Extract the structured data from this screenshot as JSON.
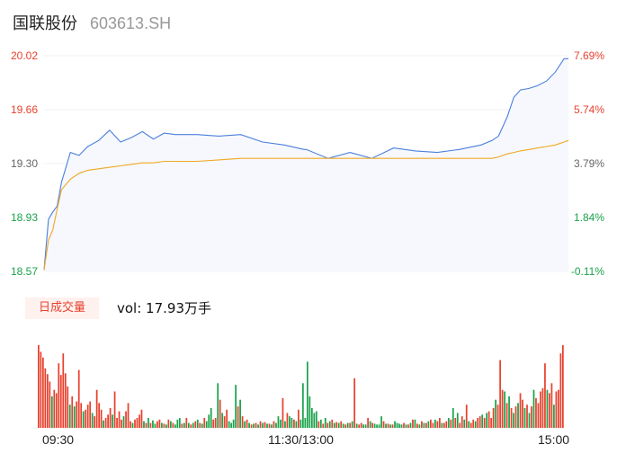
{
  "stock": {
    "name": "国联股份",
    "code": "603613.SH"
  },
  "colors": {
    "up": "#e8412d",
    "down": "#1aa34a",
    "price_line": "#4a7fdc",
    "avg_line": "#f0a820",
    "neutral": "#666666"
  },
  "volume": {
    "tab_label": "日成交量",
    "summary": "vol: 17.93万手"
  },
  "chart_data": [
    {
      "type": "line",
      "title": "",
      "y_left_ticks": [
        "20.02",
        "19.66",
        "19.30",
        "18.93",
        "18.57"
      ],
      "y_right_ticks": [
        "7.69%",
        "5.74%",
        "3.79%",
        "1.84%",
        "-0.11%"
      ],
      "ylim": [
        18.57,
        20.02
      ],
      "x_tick_labels": [
        "09:30",
        "11:30/13:00",
        "15:00"
      ],
      "x": [
        0,
        2,
        4,
        6,
        8,
        12,
        16,
        20,
        25,
        30,
        35,
        40,
        45,
        50,
        55,
        60,
        70,
        80,
        90,
        100,
        110,
        119,
        120,
        130,
        140,
        150,
        160,
        170,
        180,
        190,
        200,
        205,
        208,
        212,
        215,
        218,
        222,
        226,
        230,
        234,
        238,
        240
      ],
      "series": [
        {
          "values": [
            18.58,
            18.92,
            18.97,
            19.01,
            19.17,
            19.37,
            19.35,
            19.41,
            19.45,
            19.52,
            19.44,
            19.47,
            19.51,
            19.46,
            19.5,
            19.49,
            19.49,
            19.48,
            19.49,
            19.44,
            19.42,
            19.39,
            19.39,
            19.33,
            19.37,
            19.33,
            19.4,
            19.38,
            19.37,
            19.39,
            19.42,
            19.45,
            19.48,
            19.61,
            19.74,
            19.79,
            19.8,
            19.82,
            19.85,
            19.91,
            20.0,
            20.0
          ]
        },
        {
          "values": [
            18.58,
            18.78,
            18.85,
            18.99,
            19.12,
            19.19,
            19.23,
            19.25,
            19.26,
            19.27,
            19.28,
            19.29,
            19.3,
            19.3,
            19.31,
            19.31,
            19.31,
            19.32,
            19.33,
            19.33,
            19.33,
            19.33,
            19.33,
            19.33,
            19.33,
            19.33,
            19.33,
            19.33,
            19.33,
            19.33,
            19.33,
            19.33,
            19.34,
            19.36,
            19.37,
            19.38,
            19.39,
            19.4,
            19.41,
            19.42,
            19.44,
            19.45
          ]
        }
      ]
    },
    {
      "type": "bar",
      "title": "",
      "values": [
        1.0,
        0.92,
        0.85,
        0.72,
        0.65,
        0.56,
        0.38,
        0.46,
        0.42,
        0.78,
        0.64,
        0.9,
        0.66,
        0.5,
        0.28,
        0.38,
        0.26,
        0.32,
        0.7,
        0.3,
        0.2,
        0.22,
        0.28,
        0.32,
        0.18,
        0.14,
        0.46,
        0.3,
        0.22,
        0.09,
        0.12,
        0.16,
        0.24,
        0.16,
        0.44,
        0.12,
        0.2,
        0.1,
        0.14,
        0.2,
        0.3,
        0.08,
        0.06,
        0.1,
        0.12,
        0.16,
        0.22,
        0.08,
        0.06,
        0.12,
        0.06,
        0.09,
        0.05,
        0.08,
        0.1,
        0.06,
        0.05,
        0.04,
        0.1,
        0.08,
        0.06,
        0.04,
        0.1,
        0.12,
        0.05,
        0.06,
        0.12,
        0.06,
        0.04,
        0.06,
        0.08,
        0.1,
        0.06,
        0.05,
        0.12,
        0.08,
        0.16,
        0.24,
        0.1,
        0.12,
        0.54,
        0.34,
        0.18,
        0.14,
        0.22,
        0.08,
        0.06,
        0.1,
        0.52,
        0.26,
        0.34,
        0.14,
        0.08,
        0.1,
        0.06,
        0.04,
        0.05,
        0.06,
        0.04,
        0.08,
        0.06,
        0.07,
        0.05,
        0.05,
        0.04,
        0.08,
        0.06,
        0.14,
        0.1,
        0.36,
        0.08,
        0.18,
        0.14,
        0.12,
        0.1,
        0.08,
        0.22,
        0.1,
        0.54,
        0.12,
        0.8,
        0.38,
        0.24,
        0.18,
        0.2,
        0.08,
        0.1,
        0.05,
        0.12,
        0.06,
        0.08,
        0.1,
        0.06,
        0.07,
        0.06,
        0.08,
        0.05,
        0.04,
        0.06,
        0.06,
        0.08,
        0.6,
        0.05,
        0.04,
        0.06,
        0.04,
        0.04,
        0.12,
        0.08,
        0.06,
        0.05,
        0.04,
        0.04,
        0.14,
        0.08,
        0.05,
        0.05,
        0.04,
        0.04,
        0.08,
        0.06,
        0.05,
        0.04,
        0.06,
        0.04,
        0.04,
        0.06,
        0.1,
        0.1,
        0.05,
        0.04,
        0.08,
        0.06,
        0.06,
        0.08,
        0.1,
        0.06,
        0.1,
        0.08,
        0.12,
        0.06,
        0.06,
        0.08,
        0.12,
        0.1,
        0.24,
        0.12,
        0.18,
        0.06,
        0.14,
        0.1,
        0.28,
        0.08,
        0.06,
        0.1,
        0.08,
        0.12,
        0.14,
        0.16,
        0.12,
        0.18,
        0.2,
        0.12,
        0.24,
        0.34,
        0.28,
        0.82,
        0.46,
        0.44,
        0.3,
        0.38,
        0.24,
        0.18,
        0.26,
        0.3,
        0.42,
        0.34,
        0.24,
        0.28,
        0.18,
        0.26,
        0.46,
        0.36,
        0.3,
        0.44,
        0.48,
        0.78,
        0.46,
        0.42,
        0.54,
        0.28,
        0.44,
        0.46,
        0.9,
        1.0
      ],
      "directions": [
        "u",
        "u",
        "u",
        "u",
        "u",
        "u",
        "d",
        "u",
        "u",
        "u",
        "u",
        "u",
        "u",
        "u",
        "d",
        "u",
        "d",
        "u",
        "u",
        "u",
        "d",
        "u",
        "u",
        "u",
        "d",
        "u",
        "u",
        "u",
        "u",
        "d",
        "u",
        "u",
        "u",
        "d",
        "u",
        "u",
        "u",
        "u",
        "d",
        "u",
        "u",
        "u",
        "d",
        "u",
        "u",
        "u",
        "u",
        "d",
        "u",
        "d",
        "u",
        "d",
        "d",
        "u",
        "u",
        "d",
        "u",
        "d",
        "u",
        "d",
        "u",
        "d",
        "d",
        "d",
        "u",
        "d",
        "u",
        "d",
        "u",
        "d",
        "u",
        "d",
        "u",
        "d",
        "u",
        "d",
        "d",
        "d",
        "u",
        "u",
        "d",
        "u",
        "d",
        "u",
        "u",
        "d",
        "d",
        "d",
        "d",
        "u",
        "d",
        "u",
        "d",
        "u",
        "d",
        "u",
        "d",
        "u",
        "d",
        "u",
        "d",
        "u",
        "d",
        "u",
        "d",
        "u",
        "d",
        "d",
        "d",
        "u",
        "d",
        "u",
        "d",
        "d",
        "u",
        "d",
        "u",
        "d",
        "d",
        "d",
        "d",
        "d",
        "d",
        "d",
        "d",
        "u",
        "d",
        "u",
        "d",
        "u",
        "d",
        "u",
        "d",
        "u",
        "d",
        "u",
        "d",
        "u",
        "d",
        "u",
        "d",
        "u",
        "d",
        "u",
        "u",
        "d",
        "d",
        "u",
        "d",
        "u",
        "d",
        "d",
        "d",
        "d",
        "u",
        "d",
        "u",
        "d",
        "u",
        "d",
        "d",
        "d",
        "d",
        "u",
        "d",
        "u",
        "d",
        "u",
        "d",
        "u",
        "d",
        "u",
        "d",
        "u",
        "d",
        "u",
        "u",
        "d",
        "u",
        "u",
        "d",
        "u",
        "u",
        "d",
        "u",
        "d",
        "u",
        "d",
        "u",
        "u",
        "d",
        "u",
        "d",
        "u",
        "u",
        "d",
        "u",
        "u",
        "d",
        "u",
        "d",
        "u",
        "u",
        "u",
        "d",
        "u",
        "u",
        "u",
        "d",
        "u",
        "d",
        "u",
        "d",
        "u",
        "d",
        "u",
        "u",
        "d",
        "u",
        "d",
        "u",
        "d",
        "u",
        "u",
        "u",
        "u",
        "u",
        "d",
        "u",
        "u",
        "d",
        "u",
        "u",
        "u",
        "u"
      ]
    }
  ]
}
